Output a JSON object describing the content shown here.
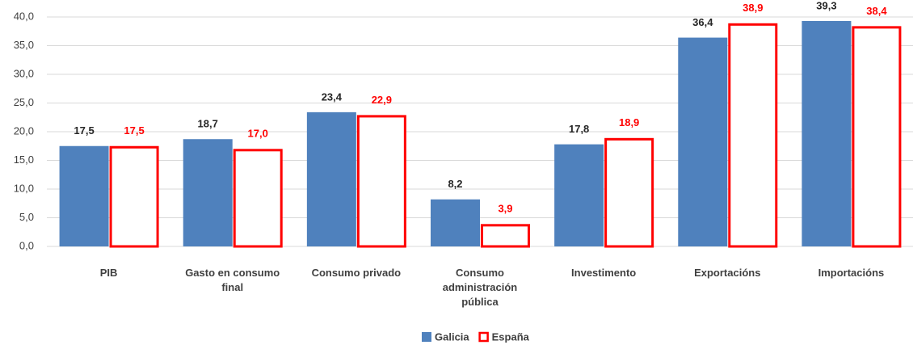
{
  "chart_data": {
    "type": "bar",
    "categories": [
      "PIB",
      "Gasto en consumo final",
      "Consumo privado",
      "Consumo administración pública",
      "Investimento",
      "Exportacións",
      "Importacións"
    ],
    "series": [
      {
        "name": "Galicia",
        "color": "#4f81bd",
        "fill": "#4f81bd",
        "label_color": "#262626",
        "values": [
          17.5,
          18.7,
          23.4,
          8.2,
          17.8,
          36.4,
          39.3
        ],
        "value_labels": [
          "17,5",
          "18,7",
          "23,4",
          "8,2",
          "17,8",
          "36,4",
          "39,3"
        ]
      },
      {
        "name": "España",
        "color": "#ff0000",
        "fill": "#ffffff",
        "label_color": "#ff0000",
        "values": [
          17.5,
          17.0,
          22.9,
          3.9,
          18.9,
          38.9,
          38.4
        ],
        "value_labels": [
          "17,5",
          "17,0",
          "22,9",
          "3,9",
          "18,9",
          "38,9",
          "38,4"
        ]
      }
    ],
    "ylim": [
      0,
      40
    ],
    "yticks": [
      {
        "value": 0,
        "label": "0,0"
      },
      {
        "value": 5,
        "label": "5,0"
      },
      {
        "value": 10,
        "label": "10,0"
      },
      {
        "value": 15,
        "label": "15,0"
      },
      {
        "value": 20,
        "label": "20,0"
      },
      {
        "value": 25,
        "label": "25,0"
      },
      {
        "value": 30,
        "label": "30,0"
      },
      {
        "value": 35,
        "label": "35,0"
      },
      {
        "value": 40,
        "label": "40,0"
      }
    ],
    "grid": true
  }
}
